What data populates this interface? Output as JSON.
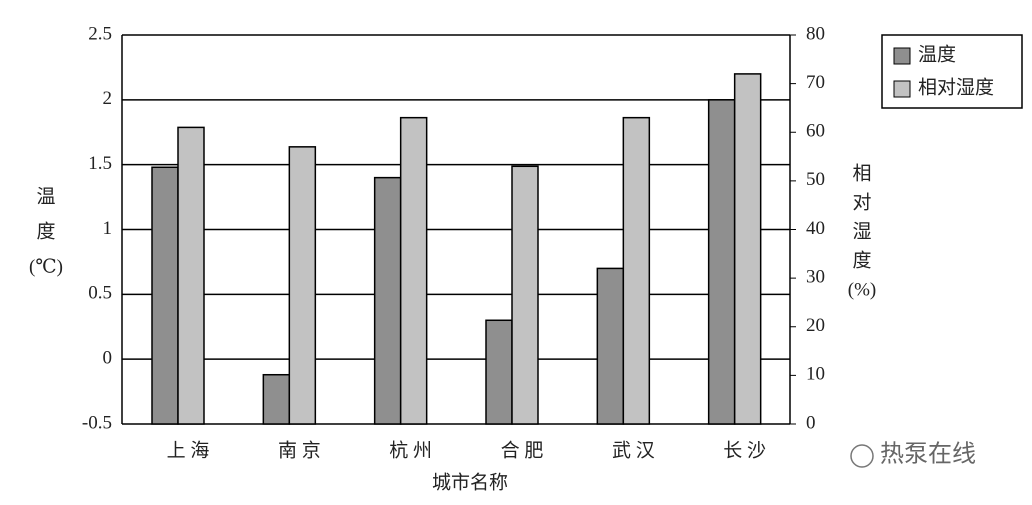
{
  "chart_data": {
    "type": "bar",
    "categories": [
      "上 海",
      "南 京",
      "杭 州",
      "合 肥",
      "武 汉",
      "长 沙"
    ],
    "series": [
      {
        "name": "温度",
        "color": "#8f8f8f",
        "values": [
          1.48,
          -0.12,
          1.4,
          0.3,
          0.7,
          2.0
        ]
      },
      {
        "name": "相对湿度",
        "color": "#c2c2c2",
        "axis": "y2",
        "values": [
          61,
          57,
          63,
          53,
          63,
          72
        ]
      }
    ],
    "ylim": [
      -0.5,
      2.5
    ],
    "yticks": [
      -0.5,
      0,
      0.5,
      1,
      1.5,
      2,
      2.5
    ],
    "y2lim": [
      0,
      80
    ],
    "y2ticks": [
      0,
      10,
      20,
      30,
      40,
      50,
      60,
      70,
      80
    ],
    "ylabel": [
      "温",
      "度",
      "(℃)"
    ],
    "y2label": [
      "相",
      "对",
      "湿",
      "度",
      "(%)"
    ],
    "xlabel": "城市名称",
    "grid": true,
    "legend": "top-right",
    "watermark": "热泵在线"
  }
}
